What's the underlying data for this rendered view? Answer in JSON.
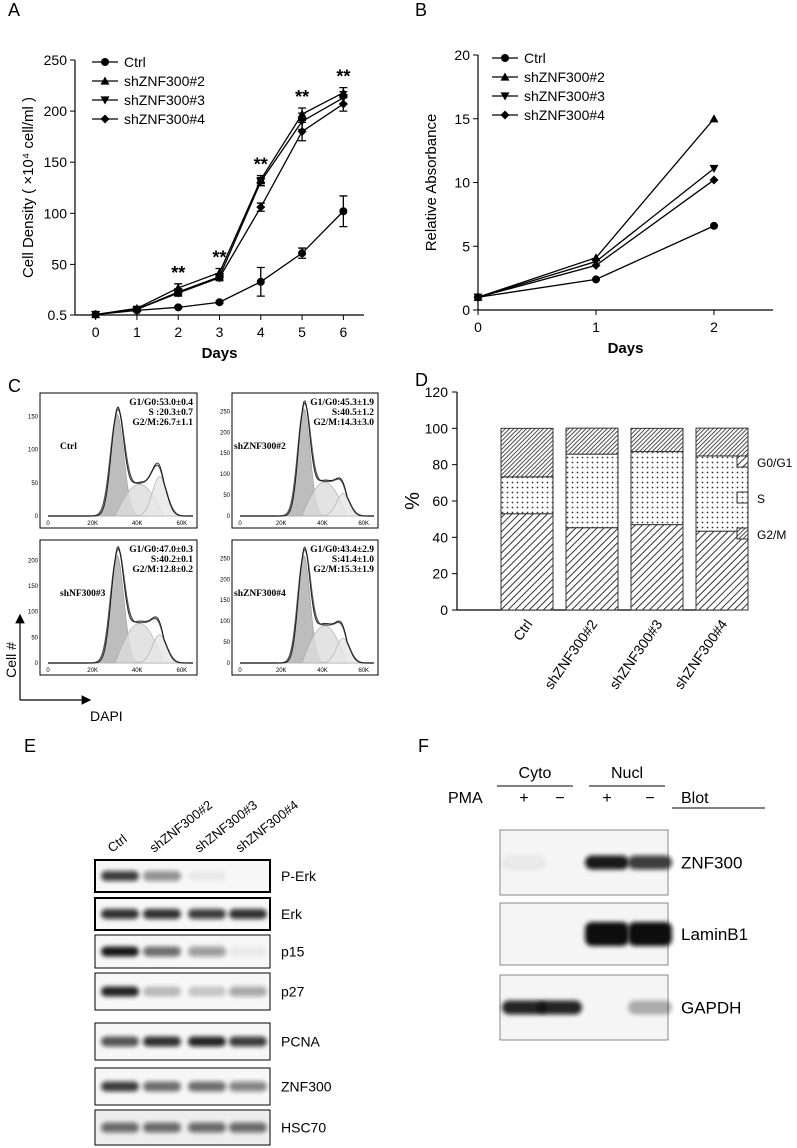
{
  "chart_data": [
    {
      "type": "line",
      "panel": "A",
      "x_label": "Days",
      "y_label": "Cell Density ( ×10⁴ cell/ml )",
      "x": [
        0,
        1,
        2,
        3,
        4,
        5,
        6
      ],
      "xlim": [
        -0.5,
        6.5
      ],
      "xticks": [
        0,
        1,
        2,
        3,
        4,
        5,
        6
      ],
      "ylim": [
        0.5,
        250
      ],
      "yticks": [
        0.5,
        50,
        100,
        150,
        200,
        250
      ],
      "series": [
        {
          "name": "Ctrl",
          "color": "#000000",
          "marker": "circle",
          "values": [
            1,
            5,
            8,
            13,
            33,
            61,
            102
          ],
          "errors": [
            0,
            1,
            1,
            1,
            14,
            5,
            15
          ]
        },
        {
          "name": "shZNF300#2",
          "color": "#000000",
          "marker": "triangle-up",
          "values": [
            1,
            7,
            27,
            42,
            133,
            197,
            218
          ],
          "errors": [
            0,
            1,
            4,
            4,
            4,
            6,
            5
          ]
        },
        {
          "name": "shZNF300#3",
          "color": "#000000",
          "marker": "triangle-down",
          "values": [
            1,
            6,
            23,
            38,
            131,
            190,
            213
          ],
          "errors": [
            0,
            1,
            3,
            3,
            4,
            8,
            6
          ]
        },
        {
          "name": "shZNF300#4",
          "color": "#000000",
          "marker": "diamond",
          "values": [
            1,
            6,
            22,
            37,
            106,
            180,
            207
          ],
          "errors": [
            0,
            1,
            3,
            3,
            4,
            9,
            7
          ]
        }
      ],
      "annotations": [
        {
          "text": "**",
          "x": 2
        },
        {
          "text": "**",
          "x": 3
        },
        {
          "text": "**",
          "x": 4
        },
        {
          "text": "**",
          "x": 5
        },
        {
          "text": "**",
          "x": 6
        }
      ]
    },
    {
      "type": "line",
      "panel": "B",
      "x_label": "Days",
      "y_label": "Relative Absorbance",
      "x": [
        0,
        1,
        2
      ],
      "xlim": [
        0,
        2.5
      ],
      "xticks": [
        0,
        1,
        2
      ],
      "ylim": [
        0,
        20
      ],
      "yticks": [
        0,
        5,
        10,
        15,
        20
      ],
      "series": [
        {
          "name": "Ctrl",
          "color": "#000000",
          "marker": "circle",
          "values": [
            1,
            2.4,
            6.6
          ]
        },
        {
          "name": "shZNF300#2",
          "color": "#000000",
          "marker": "triangle-up",
          "values": [
            1,
            4.1,
            15
          ]
        },
        {
          "name": "shZNF300#3",
          "color": "#000000",
          "marker": "triangle-down",
          "values": [
            1,
            3.8,
            11.1
          ]
        },
        {
          "name": "shZNF300#4",
          "color": "#000000",
          "marker": "diamond",
          "values": [
            1,
            3.5,
            10.2
          ]
        }
      ]
    },
    {
      "type": "stacked-bar",
      "panel": "D",
      "y_label": "%",
      "categories": [
        "Ctrl",
        "shZNF300#2",
        "shZNF300#3",
        "shZNF300#4"
      ],
      "ylim": [
        0,
        120
      ],
      "yticks": [
        0,
        20,
        40,
        60,
        80,
        100,
        120
      ],
      "series": [
        {
          "name": "G0/G1",
          "pattern": "hatch",
          "values": [
            53,
            45.3,
            47,
            43.4
          ]
        },
        {
          "name": "S",
          "pattern": "dots",
          "values": [
            20.3,
            40.5,
            40.2,
            41.4
          ]
        },
        {
          "name": "G2/M",
          "pattern": "dense-hatch",
          "values": [
            26.7,
            14.3,
            12.8,
            15.3
          ]
        }
      ]
    }
  ],
  "flow": {
    "panel": "C",
    "y_axis_label": "Cell #",
    "x_axis_label": "DAPI",
    "x_ticks": [
      "0",
      "20K",
      "40K",
      "60K"
    ],
    "plots": [
      {
        "label": "Ctrl",
        "stats": [
          "G1/G0:53.0±0.4",
          "S :20.3±0.7",
          "G2/M:26.7±1.1"
        ],
        "y_ticks": [
          "0",
          "50",
          "100",
          "150"
        ]
      },
      {
        "label": "shZNF300#2",
        "stats": [
          "G1/G0:45.3±1.9",
          "S:40.5±1.2",
          "G2/M:14.3±3.0"
        ],
        "y_ticks": [
          "0",
          "50",
          "100",
          "150",
          "200",
          "250"
        ]
      },
      {
        "label": "shNF300#3",
        "stats": [
          "G1/G0:47.0±0.3",
          "S:40.2±0.1",
          "G2/M:12.8±0.2"
        ],
        "y_ticks": [
          "0",
          "50",
          "100",
          "150",
          "200"
        ]
      },
      {
        "label": "shZNF300#4",
        "stats": [
          "G1/G0:43.4±2.9",
          "S:41.4±1.0",
          "G2/M:15.3±1.9"
        ],
        "y_ticks": [
          "0",
          "50",
          "100",
          "150",
          "200",
          "250"
        ]
      }
    ]
  },
  "blot_e": {
    "panel": "E",
    "lanes": [
      "Ctrl",
      "shZNF300#2",
      "shZNF300#3",
      "shZNF300#4"
    ],
    "rows": [
      "P-Erk",
      "Erk",
      "p15",
      "p27",
      "PCNA",
      "ZNF300",
      "HSC70"
    ]
  },
  "blot_f": {
    "panel": "F",
    "groups": [
      "Cyto",
      "Nucl"
    ],
    "treatment": "PMA",
    "signs": [
      "+",
      "−",
      "+",
      "−"
    ],
    "blot_header": "Blot",
    "rows": [
      "ZNF300",
      "LaminB1",
      "GAPDH"
    ]
  }
}
